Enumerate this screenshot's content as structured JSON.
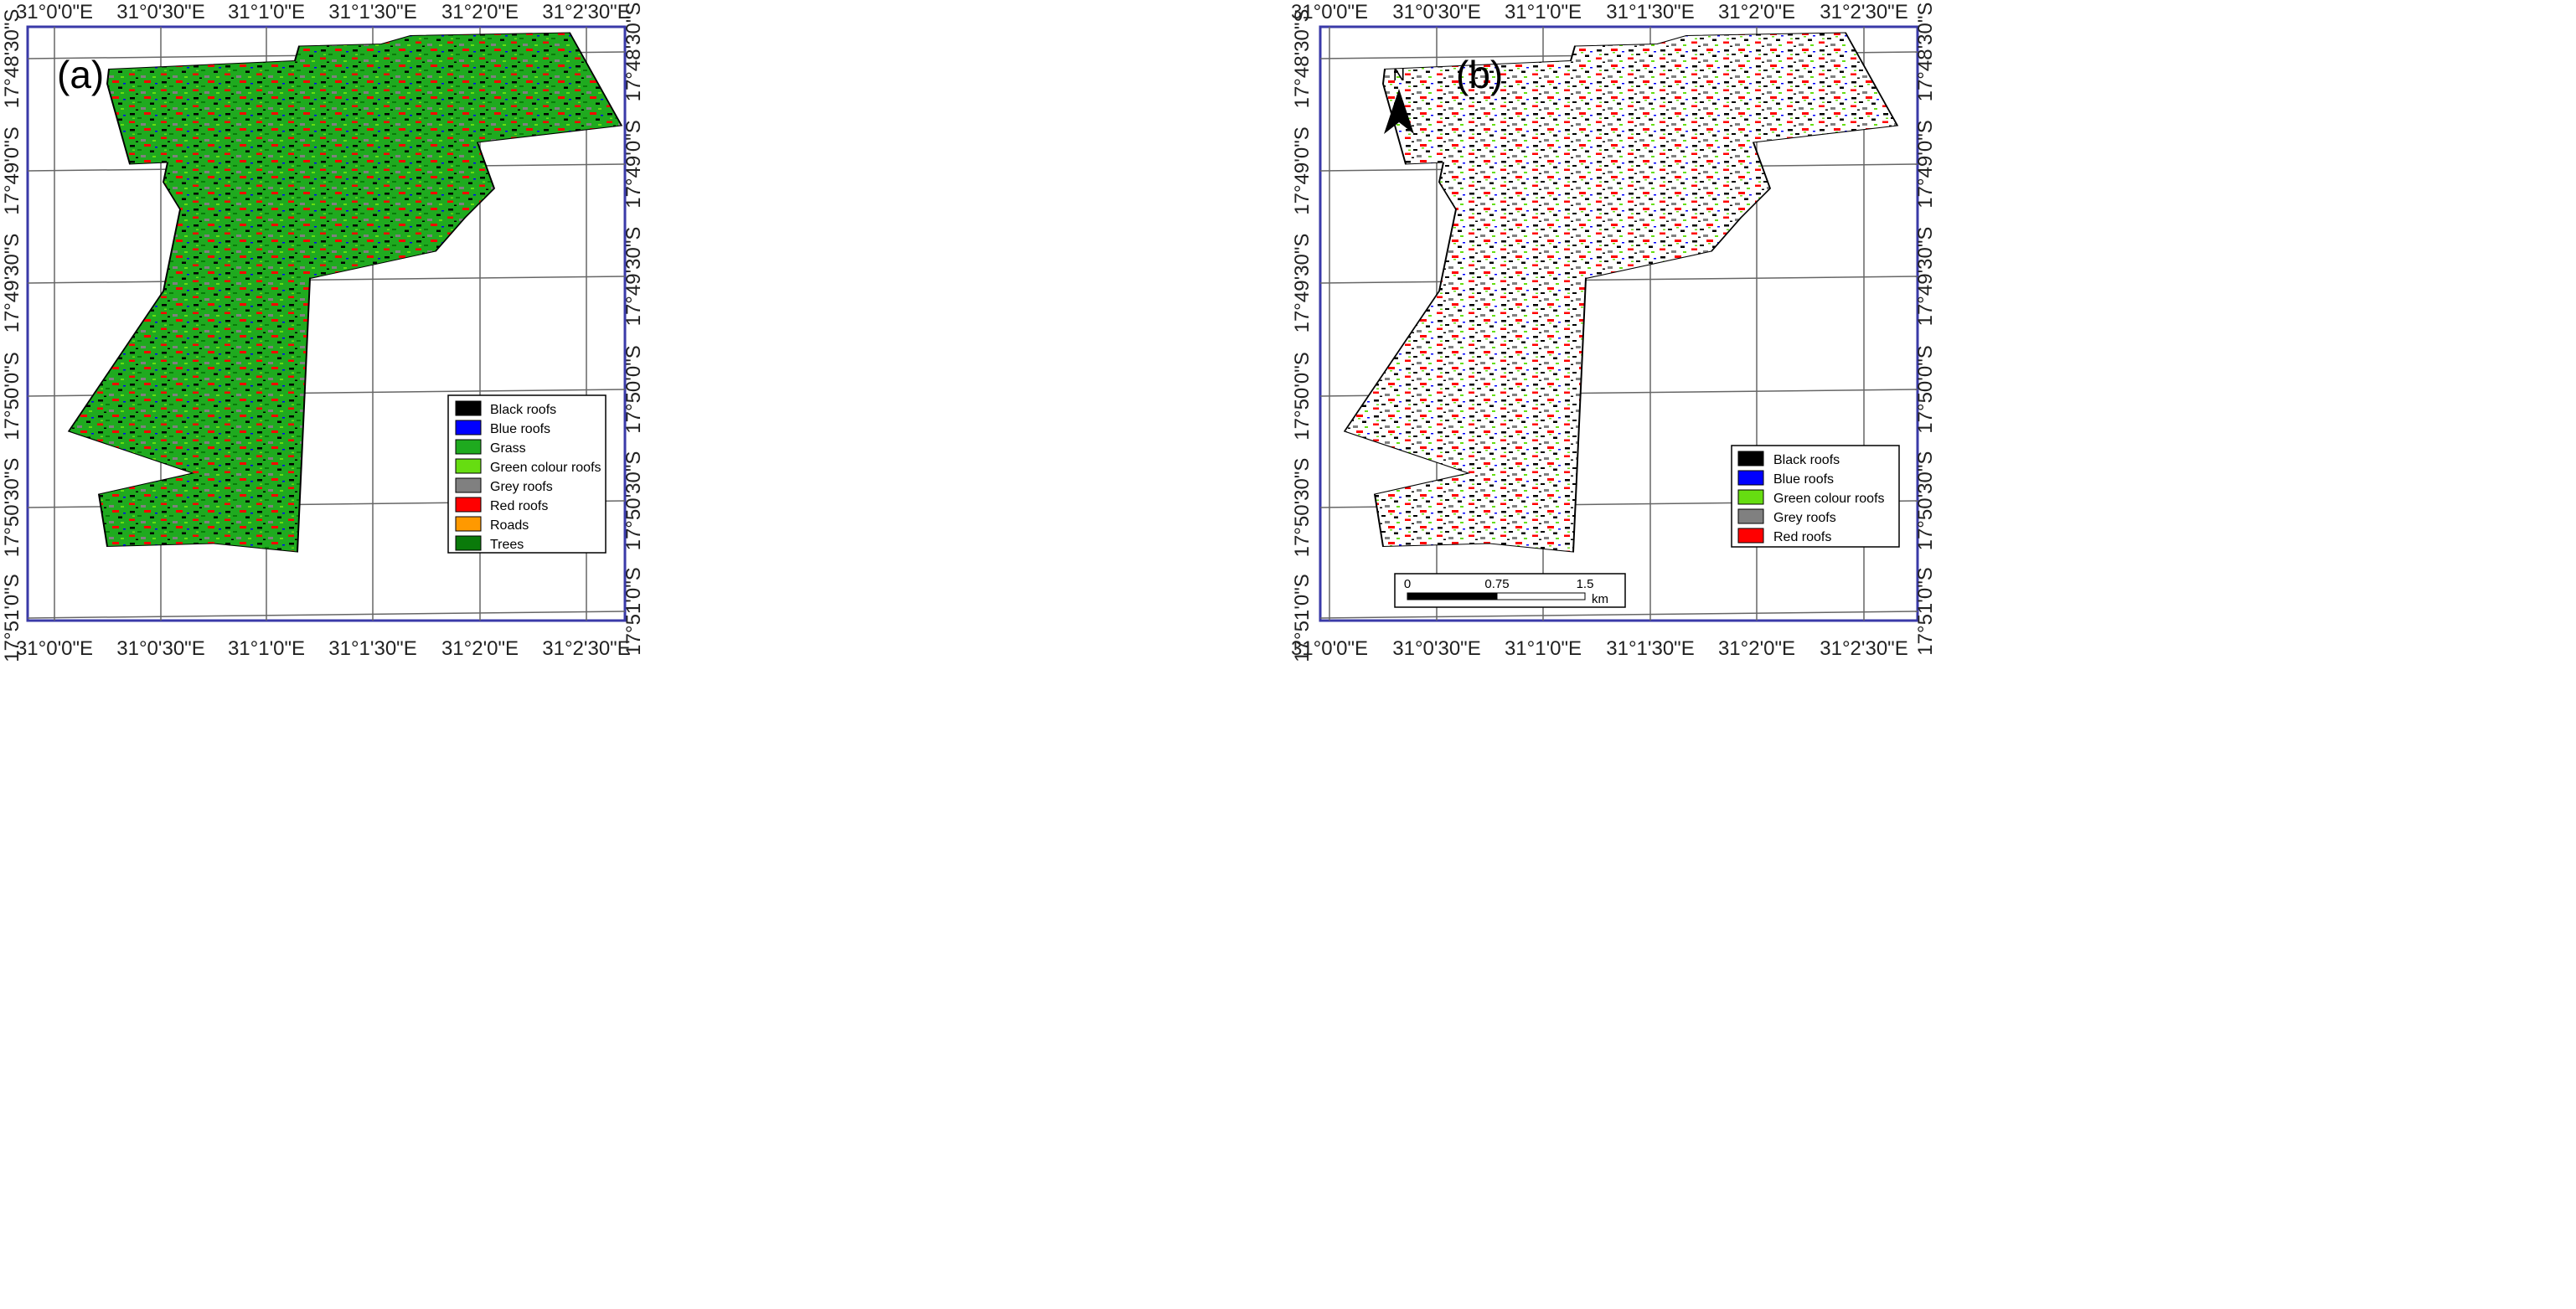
{
  "colors": {
    "frame": "#3a3aa8",
    "black_roofs": "#000000",
    "blue_roofs": "#0000ff",
    "grass": "#1faa1f",
    "green_colour_roofs": "#66dd11",
    "grey_roofs": "#808080",
    "red_roofs": "#ff0000",
    "roads": "#ff9900",
    "trees": "#0a7a0a"
  },
  "panel_a": {
    "label": "(a)",
    "x_ticks": [
      "31°0'0\"E",
      "31°0'30\"E",
      "31°1'0\"E",
      "31°1'30\"E",
      "31°2'0\"E",
      "31°2'30\"E"
    ],
    "y_ticks": [
      "17°48'30\"S",
      "17°49'0\"S",
      "17°49'30\"S",
      "17°50'0\"S",
      "17°50'30\"S",
      "17°51'0\"S"
    ],
    "legend": [
      {
        "label": "Black roofs",
        "color": "#000000"
      },
      {
        "label": "Blue roofs",
        "color": "#0000ff"
      },
      {
        "label": "Grass",
        "color": "#1faa1f"
      },
      {
        "label": "Green colour roofs",
        "color": "#66dd11"
      },
      {
        "label": "Grey roofs",
        "color": "#808080"
      },
      {
        "label": "Red roofs",
        "color": "#ff0000"
      },
      {
        "label": "Roads",
        "color": "#ff9900"
      },
      {
        "label": "Trees",
        "color": "#0a7a0a"
      }
    ]
  },
  "panel_b": {
    "label": "(b)",
    "north_label": "N",
    "x_ticks": [
      "31°0'0\"E",
      "31°0'30\"E",
      "31°1'0\"E",
      "31°1'30\"E",
      "31°2'0\"E",
      "31°2'30\"E"
    ],
    "y_ticks": [
      "17°48'30\"S",
      "17°49'0\"S",
      "17°49'30\"S",
      "17°50'0\"S",
      "17°50'30\"S",
      "17°51'0\"S"
    ],
    "legend": [
      {
        "label": "Black roofs",
        "color": "#000000"
      },
      {
        "label": "Blue roofs",
        "color": "#0000ff"
      },
      {
        "label": "Green colour roofs",
        "color": "#66dd11"
      },
      {
        "label": "Grey roofs",
        "color": "#808080"
      },
      {
        "label": "Red roofs",
        "color": "#ff0000"
      }
    ],
    "scale_bar": {
      "labels": [
        "0",
        "0.75",
        "1.5"
      ],
      "unit": "km"
    }
  }
}
